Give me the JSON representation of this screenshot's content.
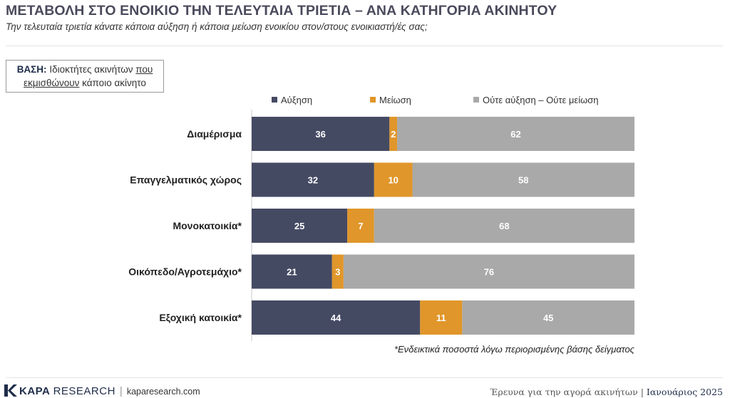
{
  "header": {
    "title": "ΜΕΤΑΒΟΛΗ ΣΤΟ ΕΝΟΙΚΙΟ ΤΗΝ ΤΕΛΕΥΤΑΙΑ ΤΡΙΕΤΙΑ – ΑΝΑ ΚΑΤΗΓΟΡΙΑ ΑΚΙΝΗΤΟΥ",
    "subtitle": "Την τελευταία τριετία κάνατε κάποια αύξηση ή κάποια μείωση ενοικίου στον/στους ενοικιαστή/ές σας;"
  },
  "base": {
    "label": "ΒΑΣΗ:",
    "text_1": "Ιδιοκτήτες ακινήτων",
    "text_underlined_1": "που",
    "text_underlined_2": "εκμισθώνουν",
    "text_2": "κάποιο ακίνητο"
  },
  "chart_data": {
    "type": "bar",
    "orientation": "horizontal",
    "stacked": true,
    "categories": [
      "Διαμέρισμα",
      "Επαγγελματικός χώρος",
      "Μονοκατοικία*",
      "Οικόπεδο/Αγροτεμάχιο*",
      "Εξοχική κατοικία*"
    ],
    "series": [
      {
        "name": "Αύξηση",
        "values": [
          36,
          32,
          25,
          21,
          44
        ],
        "color": "#454a63"
      },
      {
        "name": "Μείωση",
        "values": [
          2,
          10,
          7,
          3,
          11
        ],
        "color": "#e0962a"
      },
      {
        "name": "Ούτε αύξηση – Ούτε μείωση",
        "values": [
          62,
          58,
          68,
          76,
          45
        ],
        "color": "#a9a9a9"
      }
    ],
    "xlim": [
      0,
      100
    ],
    "legend_position": "top",
    "grid": false
  },
  "footnote": "*Ενδεικτικά ποσοστά λόγω περιορισμένης βάσης δείγματος",
  "footer": {
    "brand_bold": "KAPA",
    "brand_light": "RESEARCH",
    "divider": "|",
    "website": "kaparesearch.com",
    "report": "Έρευνα για την αγορά ακινήτων",
    "report_divider": "|",
    "date": "Ιανουάριος 2025"
  },
  "colors": {
    "title": "#4a4a5c",
    "brand": "#1f2d4a",
    "increase": "#454a63",
    "decrease": "#e0962a",
    "neutral": "#a9a9a9"
  }
}
